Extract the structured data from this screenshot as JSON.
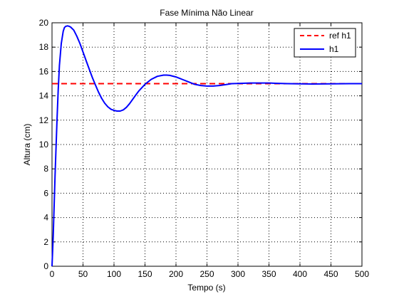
{
  "chart_data": {
    "type": "line",
    "title": "Fase Mínima Não Linear",
    "xlabel": "Tempo (s)",
    "ylabel": "Altura (cm)",
    "xlim": [
      0,
      500
    ],
    "ylim": [
      0,
      20
    ],
    "xticks": [
      0,
      50,
      100,
      150,
      200,
      250,
      300,
      350,
      400,
      450,
      500
    ],
    "yticks": [
      0,
      2,
      4,
      6,
      8,
      10,
      12,
      14,
      16,
      18,
      20
    ],
    "grid": true,
    "legend_position": "top-right",
    "series": [
      {
        "name": "ref h1",
        "color": "#ff0000",
        "style": "dashed",
        "x": [
          0,
          500
        ],
        "y": [
          15,
          15
        ]
      },
      {
        "name": "h1",
        "color": "#0000ff",
        "style": "solid",
        "x": [
          0,
          2,
          5,
          8,
          10,
          12,
          15,
          18,
          20,
          22,
          25,
          28,
          30,
          35,
          40,
          45,
          50,
          55,
          60,
          65,
          70,
          75,
          80,
          85,
          90,
          95,
          100,
          105,
          110,
          115,
          120,
          125,
          130,
          135,
          140,
          150,
          160,
          170,
          180,
          185,
          190,
          200,
          210,
          220,
          230,
          240,
          250,
          260,
          270,
          280,
          290,
          300,
          320,
          340,
          350,
          360,
          380,
          400,
          420,
          450,
          480,
          500
        ],
        "y": [
          0,
          2.5,
          7.5,
          12.0,
          14.5,
          16.5,
          18.3,
          19.3,
          19.6,
          19.7,
          19.75,
          19.7,
          19.65,
          19.4,
          18.9,
          18.3,
          17.6,
          16.9,
          16.2,
          15.5,
          14.9,
          14.3,
          13.8,
          13.4,
          13.1,
          12.9,
          12.8,
          12.75,
          12.75,
          12.85,
          13.05,
          13.35,
          13.7,
          14.05,
          14.4,
          14.95,
          15.35,
          15.6,
          15.7,
          15.7,
          15.68,
          15.55,
          15.35,
          15.15,
          14.95,
          14.85,
          14.8,
          14.8,
          14.85,
          14.92,
          15.0,
          15.02,
          15.05,
          15.05,
          15.05,
          15.03,
          15.0,
          14.98,
          14.97,
          14.98,
          15.0,
          15.0
        ]
      }
    ]
  }
}
